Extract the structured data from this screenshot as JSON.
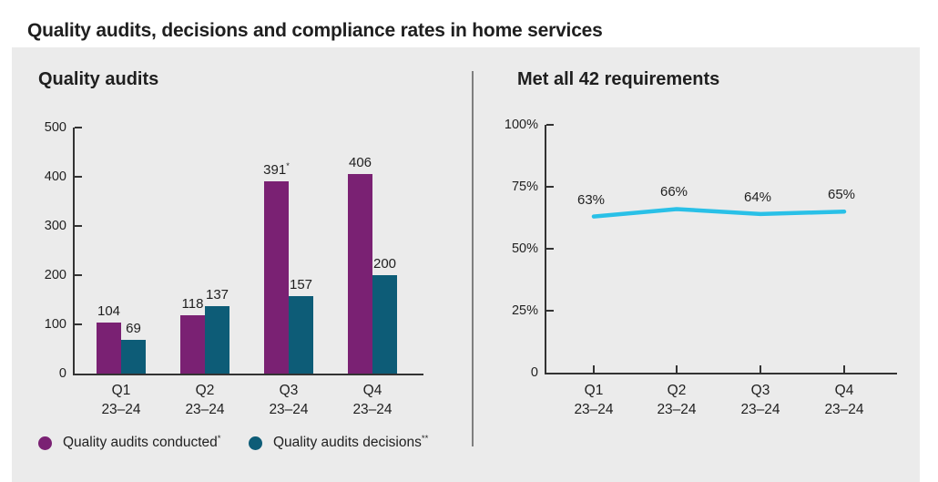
{
  "page": {
    "title": "Quality audits, decisions and compliance rates in home services"
  },
  "colors": {
    "conducted_purple": "#7A2173",
    "decisions_teal": "#0D5C77",
    "compliance_line_cyan": "#29C0E7",
    "panel_background": "#EBEBEB",
    "text": "#1F1F1F",
    "axis": "#333333",
    "divider": "#7F7F7F"
  },
  "legend": {
    "items": [
      {
        "label": "Quality audits conducted",
        "sup": "*",
        "color_key": "conducted_purple"
      },
      {
        "label": "Quality audits decisions",
        "sup": "**",
        "color_key": "decisions_teal"
      }
    ]
  },
  "chart_data": [
    {
      "type": "bar",
      "title": "Quality audits",
      "categories": [
        [
          "Q1",
          "23–24"
        ],
        [
          "Q2",
          "23–24"
        ],
        [
          "Q3",
          "23–24"
        ],
        [
          "Q4",
          "23–24"
        ]
      ],
      "series": [
        {
          "name": "Quality audits conducted*",
          "values": [
            104,
            118,
            391,
            406
          ],
          "value_labels": [
            "104",
            "118",
            "391",
            "406"
          ],
          "value_label_sups": [
            "",
            "",
            "*",
            ""
          ],
          "color": "#7A2173"
        },
        {
          "name": "Quality audits decisions**",
          "values": [
            69,
            137,
            157,
            200
          ],
          "value_labels": [
            "69",
            "137",
            "157",
            "200"
          ],
          "value_label_sups": [
            "",
            "",
            "",
            ""
          ],
          "color": "#0D5C77"
        }
      ],
      "ylim": [
        0,
        500
      ],
      "yticks": [
        {
          "value": 0,
          "label": "0"
        },
        {
          "value": 100,
          "label": "100"
        },
        {
          "value": 200,
          "label": "200"
        },
        {
          "value": 300,
          "label": "300"
        },
        {
          "value": 400,
          "label": "400"
        },
        {
          "value": 500,
          "label": "500"
        }
      ],
      "grid": false,
      "legend_position": "bottom-left"
    },
    {
      "type": "line",
      "title": "Met all 42 requirements",
      "categories": [
        [
          "Q1",
          "23–24"
        ],
        [
          "Q2",
          "23–24"
        ],
        [
          "Q3",
          "23–24"
        ],
        [
          "Q4",
          "23–24"
        ]
      ],
      "values": [
        63,
        66,
        64,
        65
      ],
      "value_labels": [
        "63%",
        "66%",
        "64%",
        "65%"
      ],
      "ylim": [
        0,
        100
      ],
      "yticks": [
        {
          "value": 0,
          "label": "0"
        },
        {
          "value": 25,
          "label": "25%"
        },
        {
          "value": 50,
          "label": "50%"
        },
        {
          "value": 75,
          "label": "75%"
        },
        {
          "value": 100,
          "label": "100%"
        }
      ],
      "grid": false,
      "color": "#29C0E7"
    }
  ]
}
